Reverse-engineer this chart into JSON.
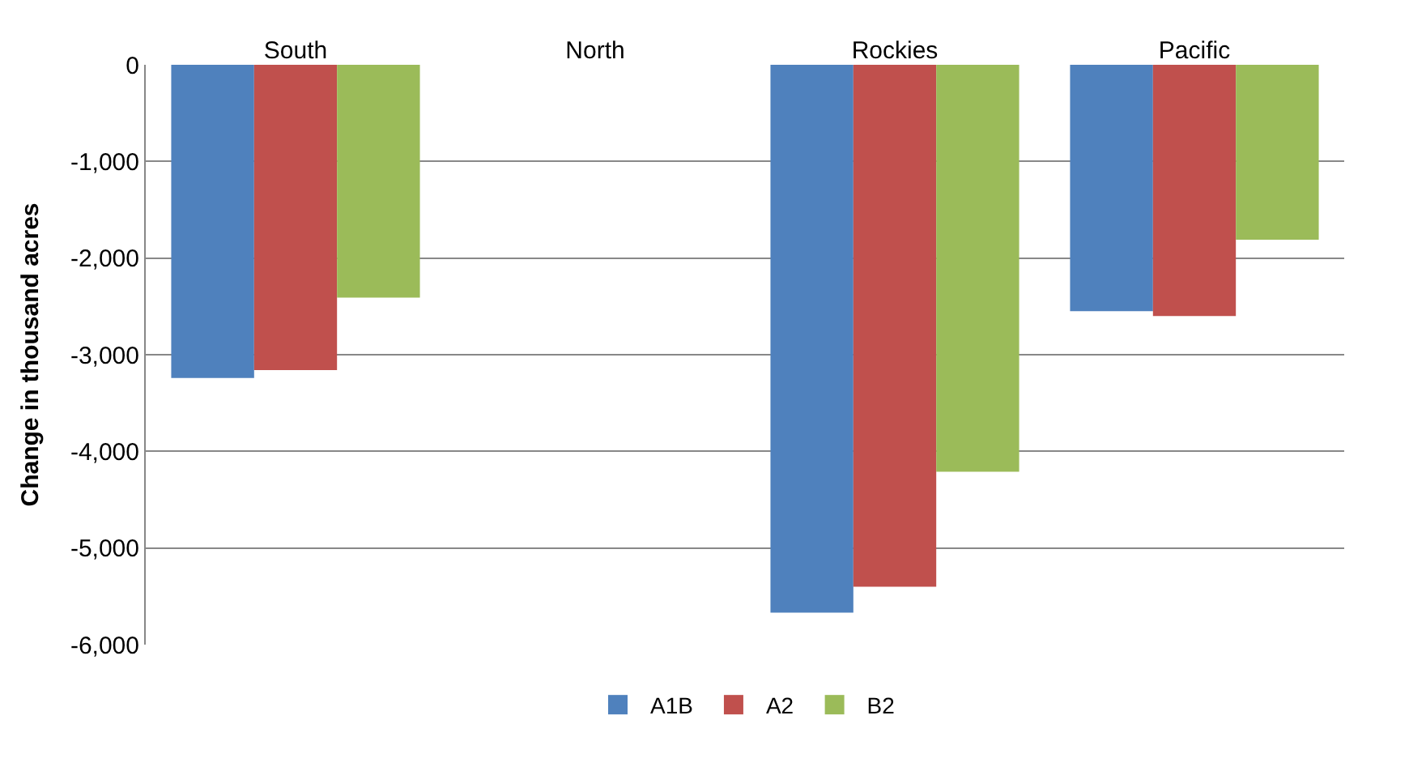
{
  "chart_data": {
    "type": "bar",
    "ylabel": "Change in thousand acres",
    "categories": [
      "South",
      "North",
      "Rockies",
      "Pacific"
    ],
    "series": [
      {
        "name": "A1B",
        "color": "#4f81bd",
        "values": [
          -3240,
          null,
          -5670,
          -2550
        ]
      },
      {
        "name": "A2",
        "color": "#c0504d",
        "values": [
          -3160,
          null,
          -5400,
          -2600
        ]
      },
      {
        "name": "B2",
        "color": "#9bbb59",
        "values": [
          -2410,
          null,
          -4210,
          -1810
        ]
      }
    ],
    "ylim": [
      -6000,
      0
    ],
    "yticks": [
      {
        "value": -6000,
        "label": "-6,000"
      },
      {
        "value": -5000,
        "label": "-5,000"
      },
      {
        "value": -4000,
        "label": "-4,000"
      },
      {
        "value": -3000,
        "label": "-3,000"
      },
      {
        "value": -2000,
        "label": "-2,000"
      },
      {
        "value": -1000,
        "label": "-1,000"
      },
      0
    ],
    "grid": "y",
    "legend": "bottom"
  }
}
